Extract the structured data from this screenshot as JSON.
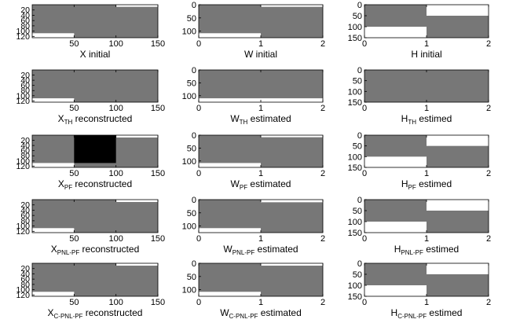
{
  "figure": {
    "background_color": "#ffffff",
    "panel_fill": "#777777",
    "palette": {
      "white": "#ffffff",
      "gray": "#777777",
      "black": "#000000"
    }
  },
  "chart_data": [
    {
      "type": "heatmap",
      "title": {
        "main": "X",
        "sub": "",
        "rest": " initial"
      },
      "x_ticks": [
        50,
        100,
        150
      ],
      "y_ticks": [
        20,
        40,
        60,
        80,
        100,
        120
      ],
      "xlim": [
        0,
        150
      ],
      "ylim": [
        125,
        0
      ],
      "cells": [
        {
          "x": [
            100,
            150
          ],
          "y": [
            0,
            8
          ],
          "color": "#ffffff"
        },
        {
          "x": [
            0,
            50
          ],
          "y": [
            108,
            125
          ],
          "color": "#ffffff"
        }
      ]
    },
    {
      "type": "heatmap",
      "title": {
        "main": "W",
        "sub": "",
        "rest": " initial"
      },
      "x_ticks": [
        0,
        1,
        2
      ],
      "y_ticks": [
        0,
        50,
        100
      ],
      "xlim": [
        0,
        2
      ],
      "ylim": [
        125,
        0
      ],
      "cells": [
        {
          "x": [
            1,
            2
          ],
          "y": [
            0,
            8
          ],
          "color": "#ffffff"
        },
        {
          "x": [
            0,
            1
          ],
          "y": [
            108,
            125
          ],
          "color": "#ffffff"
        }
      ]
    },
    {
      "type": "heatmap",
      "title": {
        "main": "H",
        "sub": "",
        "rest": " initial"
      },
      "x_ticks": [
        0,
        1,
        2
      ],
      "y_ticks": [
        0,
        50,
        100,
        150
      ],
      "xlim": [
        0,
        2
      ],
      "ylim": [
        150,
        0
      ],
      "cells": [
        {
          "x": [
            1,
            2
          ],
          "y": [
            0,
            50
          ],
          "color": "#ffffff"
        },
        {
          "x": [
            0,
            1
          ],
          "y": [
            100,
            150
          ],
          "color": "#ffffff"
        }
      ]
    },
    {
      "type": "heatmap",
      "title": {
        "main": "X",
        "sub": "TH",
        "rest": " reconstructed"
      },
      "x_ticks": [
        50,
        100,
        150
      ],
      "y_ticks": [
        20,
        40,
        60,
        80,
        100,
        120
      ],
      "xlim": [
        0,
        150
      ],
      "ylim": [
        125,
        0
      ],
      "cells": [
        {
          "x": [
            0,
            50
          ],
          "y": [
            110,
            125
          ],
          "color": "#ffffff"
        }
      ]
    },
    {
      "type": "heatmap",
      "title": {
        "main": "W",
        "sub": "TH",
        "rest": " estimated"
      },
      "x_ticks": [
        0,
        1,
        2
      ],
      "y_ticks": [
        0,
        50,
        100
      ],
      "xlim": [
        0,
        2
      ],
      "ylim": [
        125,
        0
      ],
      "cells": [
        {
          "x": [
            0,
            2
          ],
          "y": [
            110,
            125
          ],
          "color": "#ffffff"
        }
      ]
    },
    {
      "type": "heatmap",
      "title": {
        "main": "H",
        "sub": "TH",
        "rest": " estimed"
      },
      "x_ticks": [
        0,
        1,
        2
      ],
      "y_ticks": [
        0,
        50,
        100,
        150
      ],
      "xlim": [
        0,
        2
      ],
      "ylim": [
        150,
        0
      ],
      "cells": []
    },
    {
      "type": "heatmap",
      "title": {
        "main": "X",
        "sub": "PF",
        "rest": " reconstructed"
      },
      "x_ticks": [
        50,
        100,
        150
      ],
      "y_ticks": [
        20,
        40,
        60,
        80,
        100,
        120
      ],
      "xlim": [
        0,
        150
      ],
      "ylim": [
        125,
        0
      ],
      "cells": [
        {
          "x": [
            100,
            150
          ],
          "y": [
            0,
            9
          ],
          "color": "#ffffff"
        },
        {
          "x": [
            50,
            100
          ],
          "y": [
            0,
            108
          ],
          "color": "#000000"
        },
        {
          "x": [
            0,
            50
          ],
          "y": [
            108,
            125
          ],
          "color": "#ffffff"
        }
      ]
    },
    {
      "type": "heatmap",
      "title": {
        "main": "W",
        "sub": "PF",
        "rest": " estimated"
      },
      "x_ticks": [
        0,
        1,
        2
      ],
      "y_ticks": [
        0,
        50,
        100
      ],
      "xlim": [
        0,
        2
      ],
      "ylim": [
        125,
        0
      ],
      "cells": [
        {
          "x": [
            1,
            2
          ],
          "y": [
            0,
            8
          ],
          "color": "#ffffff"
        },
        {
          "x": [
            0,
            1
          ],
          "y": [
            108,
            125
          ],
          "color": "#ffffff"
        }
      ]
    },
    {
      "type": "heatmap",
      "title": {
        "main": "H",
        "sub": "PF",
        "rest": " estimed"
      },
      "x_ticks": [
        0,
        1,
        2
      ],
      "y_ticks": [
        0,
        50,
        100,
        150
      ],
      "xlim": [
        0,
        2
      ],
      "ylim": [
        150,
        0
      ],
      "cells": [
        {
          "x": [
            1,
            2
          ],
          "y": [
            0,
            50
          ],
          "color": "#ffffff"
        },
        {
          "x": [
            0,
            1
          ],
          "y": [
            100,
            150
          ],
          "color": "#ffffff"
        }
      ]
    },
    {
      "type": "heatmap",
      "title": {
        "main": "X",
        "sub": "PNL-PF",
        "rest": " reconstructed"
      },
      "x_ticks": [
        50,
        100,
        150
      ],
      "y_ticks": [
        20,
        40,
        60,
        80,
        100,
        120
      ],
      "xlim": [
        0,
        150
      ],
      "ylim": [
        125,
        0
      ],
      "cells": [
        {
          "x": [
            100,
            150
          ],
          "y": [
            0,
            9
          ],
          "color": "#ffffff"
        },
        {
          "x": [
            0,
            50
          ],
          "y": [
            108,
            125
          ],
          "color": "#ffffff"
        }
      ]
    },
    {
      "type": "heatmap",
      "title": {
        "main": "W",
        "sub": "PNL-PF",
        "rest": " estimated"
      },
      "x_ticks": [
        0,
        1,
        2
      ],
      "y_ticks": [
        0,
        50,
        100
      ],
      "xlim": [
        0,
        2
      ],
      "ylim": [
        125,
        0
      ],
      "cells": [
        {
          "x": [
            1,
            2
          ],
          "y": [
            0,
            10
          ],
          "color": "#ffffff"
        },
        {
          "x": [
            0,
            1
          ],
          "y": [
            108,
            125
          ],
          "color": "#ffffff"
        }
      ]
    },
    {
      "type": "heatmap",
      "title": {
        "main": "H",
        "sub": "PNL-PF",
        "rest": " estimed"
      },
      "x_ticks": [
        0,
        1,
        2
      ],
      "y_ticks": [
        0,
        50,
        100,
        150
      ],
      "xlim": [
        0,
        2
      ],
      "ylim": [
        150,
        0
      ],
      "cells": [
        {
          "x": [
            1,
            2
          ],
          "y": [
            0,
            50
          ],
          "color": "#ffffff"
        },
        {
          "x": [
            0,
            1
          ],
          "y": [
            100,
            150
          ],
          "color": "#ffffff"
        }
      ]
    },
    {
      "type": "heatmap",
      "title": {
        "main": "X",
        "sub": "C-PNL-PF",
        "rest": " reconstructed"
      },
      "x_ticks": [
        50,
        100,
        150
      ],
      "y_ticks": [
        20,
        40,
        60,
        80,
        100,
        120
      ],
      "xlim": [
        0,
        150
      ],
      "ylim": [
        125,
        0
      ],
      "cells": [
        {
          "x": [
            100,
            150
          ],
          "y": [
            0,
            9
          ],
          "color": "#ffffff"
        },
        {
          "x": [
            0,
            50
          ],
          "y": [
            108,
            125
          ],
          "color": "#ffffff"
        }
      ]
    },
    {
      "type": "heatmap",
      "title": {
        "main": "W",
        "sub": "C-PNL-PF",
        "rest": " estimated"
      },
      "x_ticks": [
        0,
        1,
        2
      ],
      "y_ticks": [
        0,
        50,
        100
      ],
      "xlim": [
        0,
        2
      ],
      "ylim": [
        125,
        0
      ],
      "cells": [
        {
          "x": [
            1,
            2
          ],
          "y": [
            0,
            9
          ],
          "color": "#ffffff"
        },
        {
          "x": [
            0,
            1
          ],
          "y": [
            108,
            125
          ],
          "color": "#ffffff"
        }
      ]
    },
    {
      "type": "heatmap",
      "title": {
        "main": "H",
        "sub": "C-PNL-PF",
        "rest": " estimed"
      },
      "x_ticks": [
        0,
        1,
        2
      ],
      "y_ticks": [
        0,
        50,
        100,
        150
      ],
      "xlim": [
        0,
        2
      ],
      "ylim": [
        150,
        0
      ],
      "cells": [
        {
          "x": [
            1,
            2
          ],
          "y": [
            0,
            50
          ],
          "color": "#ffffff"
        },
        {
          "x": [
            0,
            1
          ],
          "y": [
            100,
            150
          ],
          "color": "#ffffff"
        }
      ]
    }
  ]
}
